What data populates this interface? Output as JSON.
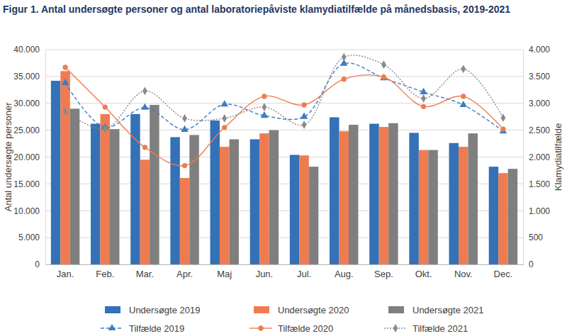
{
  "chart_data": {
    "type": "bar",
    "title": "Figur 1. Antal undersøgte personer og antal laboratoriepåviste klamydiatilfælde på månedsbasis, 2019-2021",
    "y_label": "Antal undersøgte personer",
    "y2_label": "Klamydiatilfælde",
    "categories": [
      "Jan.",
      "Feb.",
      "Mar.",
      "Apr.",
      "Maj",
      "Jun.",
      "Jul.",
      "Aug.",
      "Sep.",
      "Okt.",
      "Nov.",
      "Dec."
    ],
    "ylim": [
      0,
      40000
    ],
    "yticks": [
      0,
      {
        "value": 5000,
        "label": "5.000"
      },
      {
        "value": 10000,
        "label": "10.000"
      },
      {
        "value": 15000,
        "label": "15.000"
      },
      {
        "value": 20000,
        "label": "20.000"
      },
      {
        "value": 25000,
        "label": "25.000"
      },
      {
        "value": 30000,
        "label": "30.000"
      },
      {
        "value": 35000,
        "label": "35.000"
      },
      {
        "value": 40000,
        "label": "40.000"
      }
    ],
    "y2lim": [
      0,
      4000
    ],
    "y2ticks": [
      0,
      500,
      {
        "value": 1000,
        "label": "1.000"
      },
      {
        "value": 1500,
        "label": "1.500"
      },
      {
        "value": 2000,
        "label": "2.000"
      },
      {
        "value": 2500,
        "label": "2.500"
      },
      {
        "value": 3000,
        "label": "3.000"
      },
      {
        "value": 3500,
        "label": "3.500"
      },
      {
        "value": 4000,
        "label": "4.000"
      }
    ],
    "grid": true,
    "legend": "bottom",
    "series": [
      {
        "name": "Undersøgte 2019",
        "type": "bar",
        "color": "#3471b6",
        "values": [
          34200,
          26200,
          28000,
          23700,
          26800,
          23300,
          20400,
          27400,
          26200,
          24500,
          22600,
          18200
        ]
      },
      {
        "name": "Undersøgte 2020",
        "type": "bar",
        "color": "#ef7c51",
        "values": [
          36000,
          28000,
          19500,
          16100,
          21900,
          24400,
          20300,
          24800,
          25600,
          21300,
          21900,
          17000
        ]
      },
      {
        "name": "Undersøgte 2021",
        "type": "bar",
        "color": "#7f7f7f",
        "values": [
          29000,
          25200,
          29700,
          24100,
          23300,
          25000,
          18200,
          26000,
          26300,
          21300,
          24400,
          17800
        ]
      },
      {
        "name": "Tilfælde 2019",
        "type": "line",
        "axis": "y2",
        "color": "#3b7dc4",
        "marker": "triangle",
        "line_style": "dashed",
        "values": [
          3380,
          2550,
          2920,
          2510,
          2980,
          2770,
          2750,
          3740,
          3470,
          3210,
          2970,
          2480
        ]
      },
      {
        "name": "Tilfælde 2020",
        "type": "line",
        "axis": "y2",
        "color": "#ef7c51",
        "marker": "circle",
        "line_style": "solid",
        "values": [
          3670,
          2930,
          2180,
          1840,
          2550,
          3130,
          2970,
          3450,
          3490,
          2940,
          3130,
          2520
        ]
      },
      {
        "name": "Tilfælde 2021",
        "type": "line",
        "axis": "y2",
        "color": "#8a8a8a",
        "marker": "diamond",
        "line_style": "dotted",
        "values": [
          2850,
          2520,
          3230,
          2720,
          2720,
          2930,
          2600,
          3860,
          3720,
          3090,
          3640,
          2730
        ]
      }
    ]
  }
}
